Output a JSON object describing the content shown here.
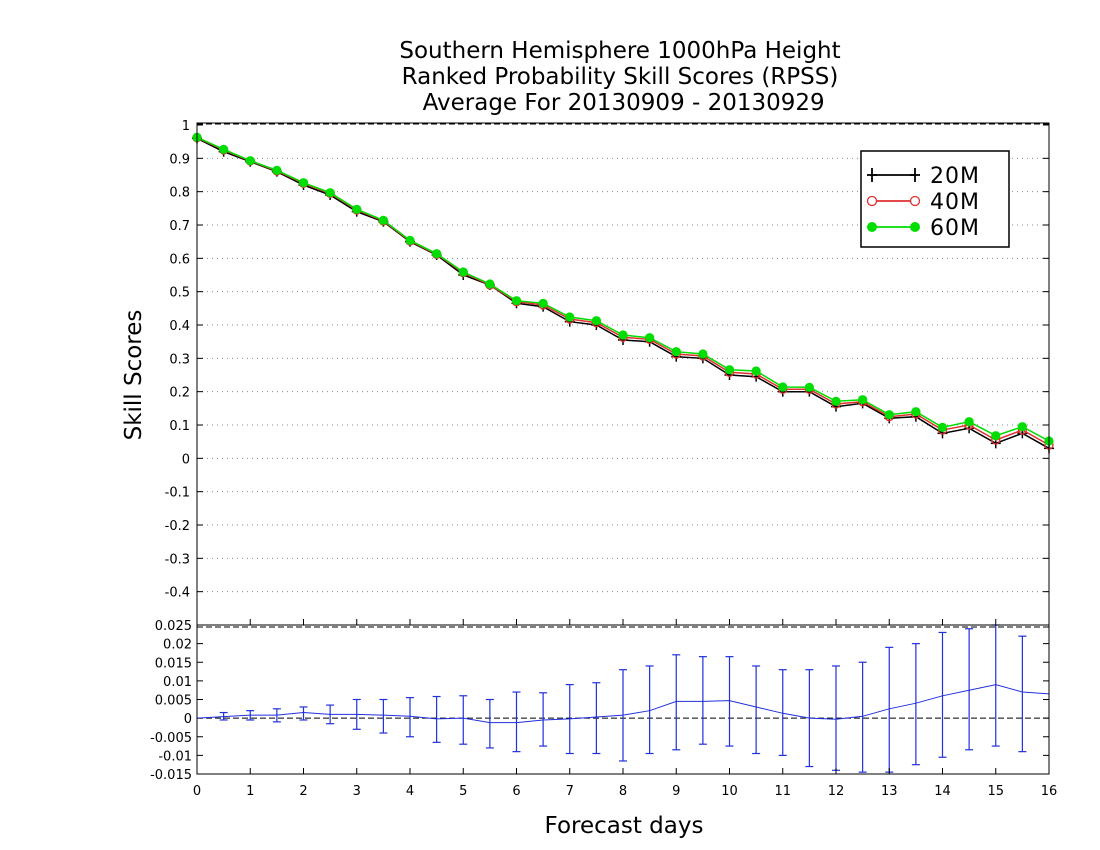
{
  "chart_data": [
    {
      "type": "line",
      "title": [
        "Southern Hemisphere 1000hPa Height",
        "Ranked Probability Skill Scores (RPSS)",
        " Average For 20130909 - 20130929"
      ],
      "xlabel": "Forecast days",
      "ylabel": "Skill Scores",
      "xlim": [
        0,
        16
      ],
      "ylim": [
        -0.5,
        1
      ],
      "yticks": [
        "1",
        "0.9",
        "0.8",
        "0.7",
        "0.6",
        "0.5",
        "0.4",
        "0.3",
        "0.2",
        "0.1",
        "0",
        "-0.1",
        "-0.2",
        "-0.3",
        "-0.4"
      ],
      "ytick_values": [
        1,
        0.9,
        0.8,
        0.7,
        0.6,
        0.5,
        0.4,
        0.3,
        0.2,
        0.1,
        0,
        -0.1,
        -0.2,
        -0.3,
        -0.4
      ],
      "grid": true,
      "legend_position": "top-right",
      "x": [
        0,
        0.5,
        1,
        1.5,
        2,
        2.5,
        3,
        3.5,
        4,
        4.5,
        5,
        5.5,
        6,
        6.5,
        7,
        7.5,
        8,
        8.5,
        9,
        9.5,
        10,
        10.5,
        11,
        11.5,
        12,
        12.5,
        13,
        13.5,
        14,
        14.5,
        15,
        15.5,
        16
      ],
      "series": [
        {
          "name": "20M",
          "color": "#000000",
          "marker": "plus",
          "values": [
            0.96,
            0.92,
            0.89,
            0.86,
            0.82,
            0.79,
            0.74,
            0.71,
            0.65,
            0.61,
            0.55,
            0.52,
            0.465,
            0.455,
            0.41,
            0.4,
            0.355,
            0.35,
            0.305,
            0.3,
            0.25,
            0.245,
            0.2,
            0.2,
            0.155,
            0.165,
            0.12,
            0.125,
            0.075,
            0.09,
            0.045,
            0.075,
            0.03
          ]
        },
        {
          "name": "40M",
          "color": "#e03030",
          "marker": "open-circle",
          "values": [
            0.962,
            0.925,
            0.892,
            0.862,
            0.825,
            0.795,
            0.745,
            0.712,
            0.652,
            0.612,
            0.557,
            0.52,
            0.47,
            0.46,
            0.418,
            0.407,
            0.363,
            0.357,
            0.313,
            0.307,
            0.258,
            0.253,
            0.207,
            0.207,
            0.163,
            0.17,
            0.125,
            0.133,
            0.085,
            0.1,
            0.055,
            0.085,
            0.04
          ]
        },
        {
          "name": "60M",
          "color": "#00dd00",
          "marker": "filled-circle",
          "values": [
            0.963,
            0.927,
            0.893,
            0.864,
            0.827,
            0.797,
            0.747,
            0.714,
            0.654,
            0.614,
            0.559,
            0.523,
            0.473,
            0.465,
            0.424,
            0.413,
            0.37,
            0.362,
            0.32,
            0.313,
            0.266,
            0.262,
            0.214,
            0.213,
            0.171,
            0.176,
            0.131,
            0.14,
            0.093,
            0.11,
            0.068,
            0.095,
            0.052
          ]
        }
      ]
    },
    {
      "type": "line",
      "xlim": [
        0,
        16
      ],
      "ylim": [
        -0.015,
        0.025
      ],
      "xticks": [
        "0",
        "1",
        "2",
        "3",
        "4",
        "5",
        "6",
        "7",
        "8",
        "9",
        "10",
        "11",
        "12",
        "13",
        "14",
        "15",
        "16"
      ],
      "xtick_values": [
        0,
        1,
        2,
        3,
        4,
        5,
        6,
        7,
        8,
        9,
        10,
        11,
        12,
        13,
        14,
        15,
        16
      ],
      "yticks": [
        "0.025",
        "0.02",
        "0.015",
        "0.01",
        "0.005",
        "0",
        "-0.005",
        "-0.01",
        "-0.015"
      ],
      "ytick_values": [
        0.025,
        0.02,
        0.015,
        0.01,
        0.005,
        0,
        -0.005,
        -0.01,
        -0.015
      ],
      "zero_line": true,
      "color": "#2030dd",
      "x": [
        0,
        0.5,
        1,
        1.5,
        2,
        2.5,
        3,
        3.5,
        4,
        4.5,
        5,
        5.5,
        6,
        6.5,
        7,
        7.5,
        8,
        8.5,
        9,
        9.5,
        10,
        10.5,
        11,
        11.5,
        12,
        12.5,
        13,
        13.5,
        14,
        14.5,
        15,
        15.5,
        16
      ],
      "values": [
        0,
        0.0004,
        0.0008,
        0.0008,
        0.0015,
        0.001,
        0.001,
        0.0008,
        0.0005,
        -0.0002,
        0,
        -0.0012,
        -0.0012,
        -0.0005,
        -0.0002,
        0.0003,
        0.0008,
        0.002,
        0.0045,
        0.0045,
        0.0047,
        0.003,
        0.0013,
        0,
        -0.0003,
        0.0005,
        0.0025,
        0.004,
        0.006,
        0.0075,
        0.009,
        0.007,
        0.0065
      ],
      "error_low": [
        null,
        -0.0005,
        -0.0005,
        -0.001,
        -0.0005,
        -0.0015,
        -0.003,
        -0.004,
        -0.005,
        -0.0065,
        -0.007,
        -0.008,
        -0.009,
        -0.0075,
        -0.0095,
        -0.0095,
        -0.0115,
        -0.0095,
        -0.0085,
        -0.007,
        -0.0075,
        -0.0095,
        -0.01,
        -0.013,
        -0.014,
        -0.0145,
        -0.0145,
        -0.0125,
        -0.0105,
        -0.0085,
        -0.0075,
        -0.009,
        null
      ],
      "error_high": [
        null,
        0.0015,
        0.002,
        0.0025,
        0.003,
        0.0035,
        0.005,
        0.005,
        0.0055,
        0.0058,
        0.006,
        0.005,
        0.007,
        0.0068,
        0.009,
        0.0095,
        0.013,
        0.014,
        0.017,
        0.0165,
        0.0165,
        0.014,
        0.013,
        0.013,
        0.014,
        0.015,
        0.019,
        0.02,
        0.023,
        0.024,
        0.025,
        0.022,
        null
      ]
    }
  ]
}
